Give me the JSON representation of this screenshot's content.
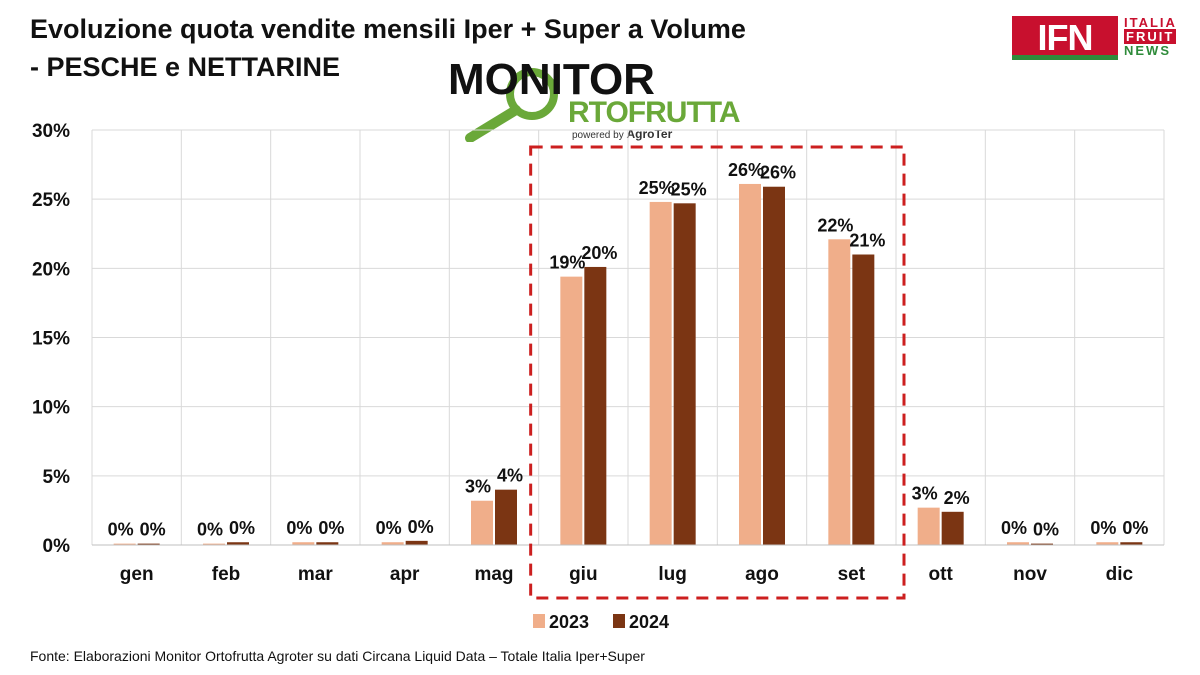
{
  "header": {
    "title_line1": "Evoluzione quota vendite mensili Iper + Super a Volume",
    "title_line2": "- PESCHE e NETTARINE"
  },
  "ifn_logo": {
    "mark": "IFN",
    "line1": "ITALIA",
    "line2": "FRUIT",
    "line3": "NEWS"
  },
  "monitor_logo": {
    "word1": "MONITOR",
    "word2": "RTOFRUTTA",
    "powered": "powered by",
    "brand": "AgroTer"
  },
  "footer": {
    "source": "Fonte: Elaborazioni Monitor Ortofrutta Agroter su dati Circana Liquid Data – Totale Italia Iper+Super"
  },
  "colors": {
    "series_2023": "#f0ae8a",
    "series_2024": "#7b3513",
    "highlight": "#cc1f1f",
    "grid": "#d9d9d9"
  },
  "chart_data": {
    "type": "bar",
    "title": "Evoluzione quota vendite mensili Iper + Super a Volume - PESCHE e NETTARINE",
    "categories": [
      "gen",
      "feb",
      "mar",
      "apr",
      "mag",
      "giu",
      "lug",
      "ago",
      "set",
      "ott",
      "nov",
      "dic"
    ],
    "series": [
      {
        "name": "2023",
        "values": [
          0.1,
          0.1,
          0.2,
          0.2,
          3.2,
          19.4,
          24.8,
          26.1,
          22.1,
          2.7,
          0.2,
          0.2
        ],
        "labels": [
          "0%",
          "0%",
          "0%",
          "0%",
          "3%",
          "19%",
          "25%",
          "26%",
          "22%",
          "3%",
          "0%",
          "0%"
        ]
      },
      {
        "name": "2024",
        "values": [
          0.1,
          0.2,
          0.2,
          0.3,
          4.0,
          20.1,
          24.7,
          25.9,
          21.0,
          2.4,
          0.1,
          0.2
        ],
        "labels": [
          "0%",
          "0%",
          "0%",
          "0%",
          "4%",
          "20%",
          "25%",
          "26%",
          "21%",
          "2%",
          "0%",
          "0%"
        ]
      }
    ],
    "y_ticks": [
      "0%",
      "5%",
      "10%",
      "15%",
      "20%",
      "25%",
      "30%"
    ],
    "ylim": [
      0,
      30
    ],
    "grid": true,
    "legend_position": "bottom",
    "highlight_range": [
      "giu",
      "set"
    ]
  }
}
